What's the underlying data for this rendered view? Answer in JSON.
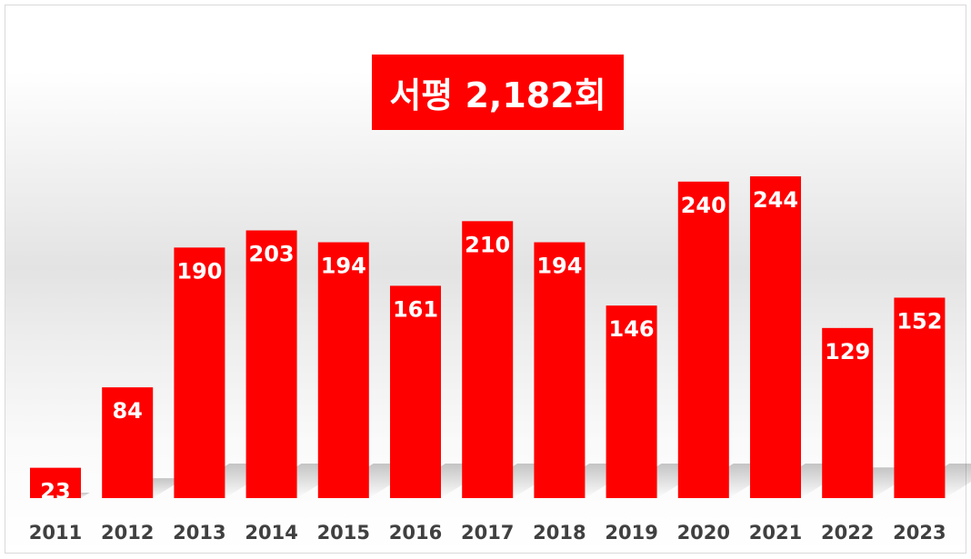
{
  "chart_data": {
    "type": "bar",
    "title": "서평 2,182회",
    "categories": [
      "2011",
      "2012",
      "2013",
      "2014",
      "2015",
      "2016",
      "2017",
      "2018",
      "2019",
      "2020",
      "2021",
      "2022",
      "2023"
    ],
    "values": [
      23,
      84,
      190,
      203,
      194,
      161,
      210,
      194,
      146,
      240,
      244,
      129,
      152
    ],
    "data_labels": [
      "23",
      "84",
      "190",
      "203",
      "194",
      "161",
      "210",
      "194",
      "146",
      "240",
      "244",
      "129",
      "152"
    ],
    "xlabel": "",
    "ylabel": "",
    "ylim": [
      0,
      244
    ],
    "grid": false,
    "legend": "none",
    "colors": {
      "bar": "#ff0000",
      "title_background": "#ff0000",
      "title_text": "#ffffff",
      "data_label": "#ffffff",
      "tick_label": "#404040"
    }
  }
}
